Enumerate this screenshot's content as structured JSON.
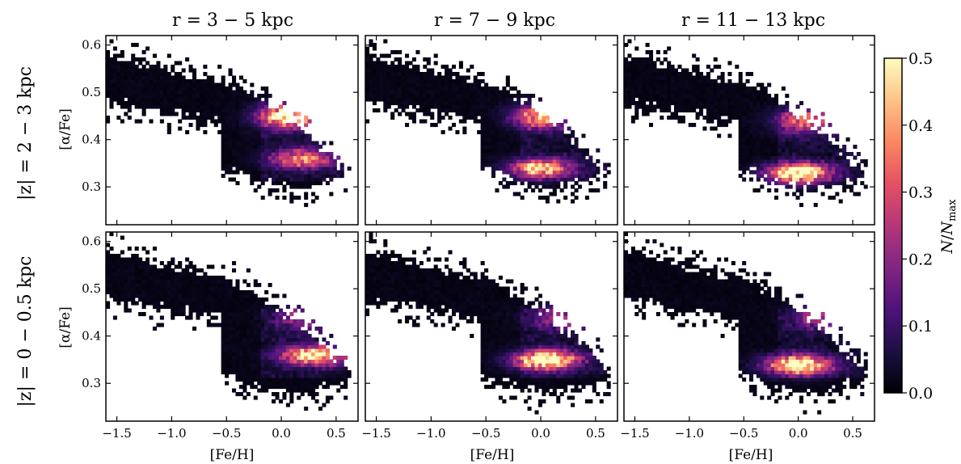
{
  "chart_data": {
    "type": "heatmap",
    "layout": "2 rows x 3 columns of panels with shared x and y axes",
    "column_titles": [
      "r = 3 − 5 kpc",
      "r = 7 − 9 kpc",
      "r = 11 − 13 kpc"
    ],
    "row_labels": [
      "|z| = 2 − 3 kpc",
      "|z| = 0 − 0.5 kpc"
    ],
    "xlabel": "[Fe/H]",
    "ylabel": "[α/Fe]",
    "xlim": [
      -1.6,
      0.7
    ],
    "ylim": [
      0.22,
      0.62
    ],
    "xticks": [
      -1.5,
      -1.0,
      -0.5,
      0.0,
      0.5
    ],
    "xtick_labels": [
      "−1.5",
      "−1.0",
      "−0.5",
      "0.0",
      "0.5"
    ],
    "yticks": [
      0.3,
      0.4,
      0.5,
      0.6
    ],
    "ytick_labels": [
      "0.3",
      "0.4",
      "0.5",
      "0.6"
    ],
    "colorbar": {
      "label": "N/N_max",
      "range": [
        0.0,
        0.5
      ],
      "ticks": [
        0.0,
        0.1,
        0.2,
        0.3,
        0.4,
        0.5
      ],
      "tick_labels": [
        "0.0",
        "0.1",
        "0.2",
        "0.3",
        "0.4",
        "0.5"
      ],
      "colormap": "magma",
      "colors": [
        "#000004",
        "#1c1044",
        "#4f127b",
        "#812581",
        "#b5367a",
        "#e55064",
        "#fb8761",
        "#fec287",
        "#fcfdbf"
      ]
    },
    "grid": false,
    "panels": [
      {
        "row": 0,
        "col": 0,
        "low_alpha_peak": {
          "feh": 0.2,
          "afe": 0.36,
          "peak": 0.35
        },
        "high_alpha_peak": {
          "feh": 0.05,
          "afe": 0.45,
          "peak": 0.5
        }
      },
      {
        "row": 0,
        "col": 1,
        "low_alpha_peak": {
          "feh": 0.0,
          "afe": 0.34,
          "peak": 0.42
        },
        "high_alpha_peak": {
          "feh": 0.0,
          "afe": 0.45,
          "peak": 0.38
        }
      },
      {
        "row": 0,
        "col": 2,
        "low_alpha_peak": {
          "feh": 0.0,
          "afe": 0.33,
          "peak": 0.55
        },
        "high_alpha_peak": {
          "feh": 0.05,
          "afe": 0.44,
          "peak": 0.3
        }
      },
      {
        "row": 1,
        "col": 0,
        "low_alpha_peak": {
          "feh": 0.3,
          "afe": 0.36,
          "peak": 0.48
        },
        "high_alpha_peak": {
          "feh": 0.2,
          "afe": 0.44,
          "peak": 0.18
        }
      },
      {
        "row": 1,
        "col": 1,
        "low_alpha_peak": {
          "feh": 0.05,
          "afe": 0.35,
          "peak": 0.55
        },
        "high_alpha_peak": {
          "feh": 0.15,
          "afe": 0.44,
          "peak": 0.18
        }
      },
      {
        "row": 1,
        "col": 2,
        "low_alpha_peak": {
          "feh": 0.0,
          "afe": 0.34,
          "peak": 0.55
        },
        "high_alpha_peak": {
          "feh": 0.2,
          "afe": 0.44,
          "peak": 0.18
        }
      }
    ]
  }
}
